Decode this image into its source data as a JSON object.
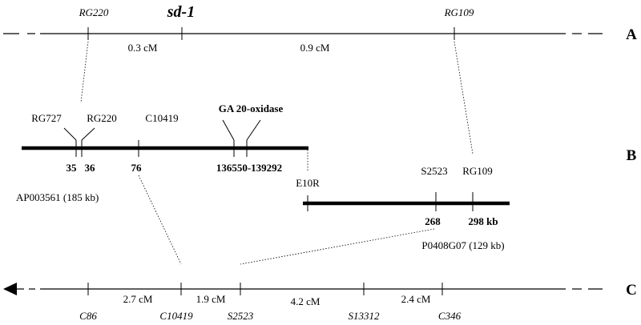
{
  "rows": {
    "A": "A",
    "B": "B",
    "C": "C"
  },
  "map_a": {
    "markers": [
      "RG220",
      "sd-1",
      "RG109"
    ],
    "distances": [
      "0.3 cM",
      "0.9 cM"
    ]
  },
  "map_b": {
    "contig1": {
      "markers": [
        "RG727",
        "RG220",
        "C10419",
        "GA 20-oxidase"
      ],
      "positions": [
        "35",
        "36",
        "76",
        "136550-139292"
      ],
      "name": "AP003561 (185 kb)"
    },
    "contig2": {
      "markers": [
        "E10R",
        "S2523",
        "RG109"
      ],
      "positions": [
        "268",
        "298 kb"
      ],
      "name": "P0408G07 (129 kb)"
    }
  },
  "map_c": {
    "markers": [
      "C86",
      "C10419",
      "S2523",
      "S13312",
      "C346"
    ],
    "distances": [
      "2.7 cM",
      "1.9 cM",
      "4.2 cM",
      "2.4 cM"
    ]
  },
  "colors": {
    "ink": "#000000",
    "background": "#ffffff"
  }
}
